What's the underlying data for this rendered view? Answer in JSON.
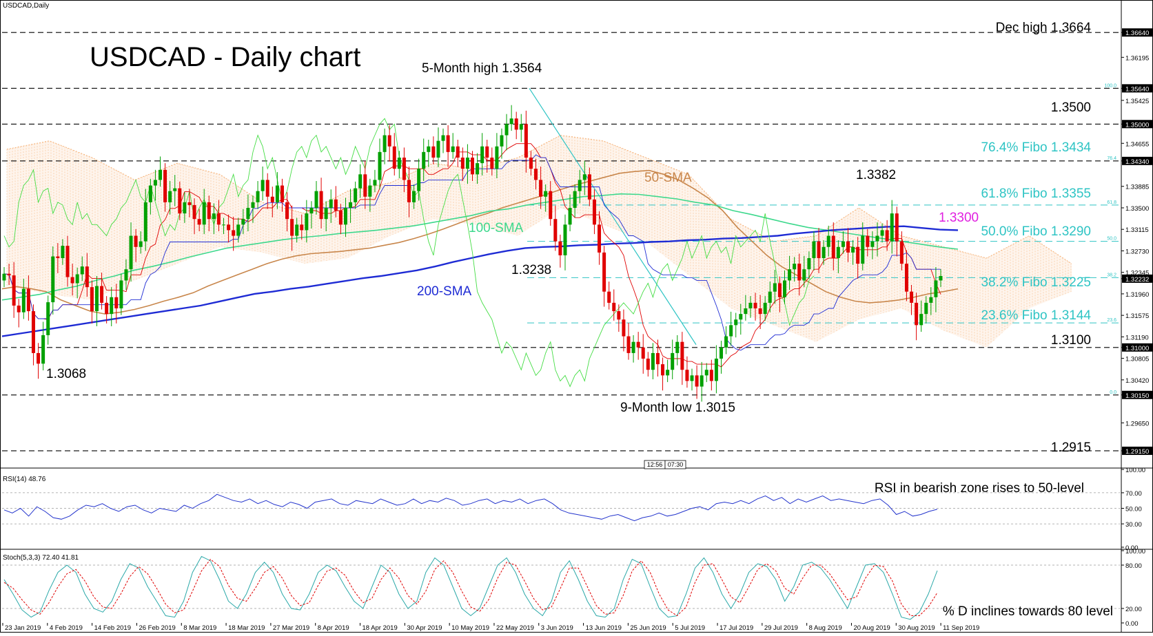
{
  "window": {
    "symbol_label": "USDCAD,Daily",
    "time_marker_left": "12:56",
    "time_marker_right": "07:30"
  },
  "colors": {
    "candle_up": "#00a000",
    "candle_down": "#e00000",
    "sma50": "#c8864b",
    "sma100": "#3cd88c",
    "sma200": "#1e2bd4",
    "tenkan": "#e00000",
    "kijun": "#1e2bd4",
    "chikou": "#44dd44",
    "cloud": "#f4a460",
    "fibo": "#2ec4c4",
    "trendline": "#2ec4c4",
    "rsi": "#2233cc",
    "stoch_k": "#2aa8a8",
    "stoch_d": "#e00000",
    "label_1_33": "#e020e0"
  },
  "chart_data": [
    {
      "type": "candlestick",
      "title": "USDCAD - Daily chart",
      "ylim": [
        1.2889,
        1.37
      ],
      "y_ticks": [
        "1.36640",
        "1.36195",
        "1.35640",
        "1.35425",
        "1.35000",
        "1.34655",
        "1.34340",
        "1.33885",
        "1.33500",
        "1.33115",
        "1.32730",
        "1.32345",
        "1.32232",
        "1.31960",
        "1.31575",
        "1.31190",
        "1.31000",
        "1.30805",
        "1.30420",
        "1.30150",
        "1.29650",
        "1.29150"
      ],
      "x_ticks": [
        "23 Jan 2019",
        "4 Feb 2019",
        "14 Feb 2019",
        "26 Feb 2019",
        "8 Mar 2019",
        "18 Mar 2019",
        "27 Mar 2019",
        "8 Apr 2019",
        "18 Apr 2019",
        "30 Apr 2019",
        "10 May 2019",
        "22 May 2019",
        "3 Jun 2019",
        "13 Jun 2019",
        "25 Jun 2019",
        "5 Jul 2019",
        "17 Jul 2019",
        "29 Jul 2019",
        "8 Aug 2019",
        "20 Aug 2019",
        "30 Aug 2019",
        "11 Sep 2019"
      ],
      "levels": [
        {
          "value": 1.3664,
          "label": "Dec high 1.3664",
          "style": "dashed-black"
        },
        {
          "value": 1.3564,
          "label": "5-Month high 1.3564",
          "style": "dashed-black"
        },
        {
          "value": 1.35,
          "label": "1.3500",
          "style": "dashed-black"
        },
        {
          "value": 1.3434,
          "label": "76.4% Fibo 1.3434",
          "style": "dashed-black"
        },
        {
          "value": 1.3355,
          "label": "61.8% Fibo 1.3355",
          "style": "dashed-fibo"
        },
        {
          "value": 1.329,
          "label": "50.0% Fibo 1.3290",
          "style": "dashed-fibo"
        },
        {
          "value": 1.3225,
          "label": "38.2% Fibo 1.3225",
          "style": "dashed-fibo"
        },
        {
          "value": 1.3144,
          "label": "23.6% Fibo 1.3144",
          "style": "dashed-fibo"
        },
        {
          "value": 1.31,
          "label": "1.3100",
          "style": "dashed-black"
        },
        {
          "value": 1.3015,
          "label": "9-Month low 1.3015",
          "style": "dashed-black"
        },
        {
          "value": 1.2915,
          "label": "1.2915",
          "style": "dashed-black"
        }
      ],
      "fibo_small_labels": [
        "100.0",
        "76.4",
        "61.8",
        "50.0",
        "38.2",
        "23.6",
        "0.0"
      ],
      "annotations": [
        {
          "text": "1.3068"
        },
        {
          "text": "1.3238"
        },
        {
          "text": "1.3382"
        },
        {
          "text": "1.3300"
        },
        {
          "text": "50-SMA"
        },
        {
          "text": "100-SMA"
        },
        {
          "text": "200-SMA"
        }
      ],
      "close_price": [
        1.3232,
        1.3229,
        1.3175,
        1.3163,
        1.3205,
        1.3165,
        1.309,
        1.3071,
        1.3122,
        1.3181,
        1.3263,
        1.326,
        1.3282,
        1.3226,
        1.3215,
        1.3231,
        1.3245,
        1.3208,
        1.3165,
        1.321,
        1.318,
        1.316,
        1.319,
        1.317,
        1.322,
        1.324,
        1.33,
        1.328,
        1.329,
        1.336,
        1.339,
        1.34,
        1.3418,
        1.336,
        1.338,
        1.3385,
        1.334,
        1.336,
        1.3355,
        1.333,
        1.332,
        1.336,
        1.333,
        1.334,
        1.332,
        1.332,
        1.331,
        1.33,
        1.332,
        1.333,
        1.335,
        1.336,
        1.338,
        1.34,
        1.337,
        1.336,
        1.339,
        1.336,
        1.333,
        1.33,
        1.332,
        1.331,
        1.334,
        1.335,
        1.338,
        1.333,
        1.335,
        1.3365,
        1.3345,
        1.332,
        1.335,
        1.336,
        1.3385,
        1.341,
        1.337,
        1.339,
        1.34,
        1.345,
        1.348,
        1.346,
        1.342,
        1.344,
        1.34,
        1.336,
        1.338,
        1.342,
        1.345,
        1.346,
        1.344,
        1.347,
        1.348,
        1.345,
        1.346,
        1.344,
        1.342,
        1.344,
        1.341,
        1.343,
        1.346,
        1.344,
        1.342,
        1.346,
        1.348,
        1.35,
        1.351,
        1.349,
        1.35,
        1.344,
        1.342,
        1.34,
        1.337,
        1.338,
        1.333,
        1.329,
        1.3265,
        1.332,
        1.335,
        1.338,
        1.34,
        1.341,
        1.3365,
        1.332,
        1.327,
        1.32,
        1.318,
        1.3165,
        1.315,
        1.312,
        1.309,
        1.311,
        1.31,
        1.308,
        1.306,
        1.309,
        1.307,
        1.305,
        1.306,
        1.309,
        1.311,
        1.306,
        1.304,
        1.305,
        1.303,
        1.305,
        1.306,
        1.304,
        1.308,
        1.31,
        1.312,
        1.314,
        1.315,
        1.316,
        1.317,
        1.318,
        1.317,
        1.316,
        1.318,
        1.32,
        1.3215,
        1.319,
        1.322,
        1.324,
        1.325,
        1.322,
        1.324,
        1.326,
        1.329,
        1.326,
        1.328,
        1.33,
        1.326,
        1.328,
        1.329,
        1.327,
        1.328,
        1.325,
        1.33,
        1.328,
        1.329,
        1.33,
        1.331,
        1.329,
        1.334,
        1.329,
        1.325,
        1.32,
        1.318,
        1.314,
        1.316,
        1.318,
        1.319,
        1.322,
        1.3228
      ],
      "series": [
        {
          "name": "50-SMA",
          "values": [
            1.3205,
            1.3209,
            1.3205,
            1.32,
            1.3185,
            1.3175,
            1.3165,
            1.316,
            1.3163,
            1.3168,
            1.3175,
            1.3183,
            1.319,
            1.3198,
            1.321,
            1.322,
            1.323,
            1.324,
            1.325,
            1.3258,
            1.3264,
            1.3268,
            1.327,
            1.3272,
            1.3275,
            1.3278,
            1.3283,
            1.3288,
            1.3295,
            1.3303,
            1.3312,
            1.3322,
            1.3332,
            1.334,
            1.335,
            1.3358,
            1.3366,
            1.3374,
            1.3383,
            1.3391,
            1.3398,
            1.3405,
            1.3412,
            1.3415,
            1.3417,
            1.341,
            1.34,
            1.3385,
            1.3368,
            1.3345,
            1.3315,
            1.329,
            1.3265,
            1.3245,
            1.323,
            1.3215,
            1.32,
            1.319,
            1.3183,
            1.318,
            1.3182,
            1.3185,
            1.319,
            1.3196,
            1.32,
            1.3205
          ]
        },
        {
          "name": "100-SMA",
          "values": [
            1.3185,
            1.319,
            1.3195,
            1.3203,
            1.321,
            1.322,
            1.3228,
            1.3238,
            1.3245,
            1.3253,
            1.3262,
            1.327,
            1.3278,
            1.3283,
            1.3288,
            1.3293,
            1.3297,
            1.33,
            1.3304,
            1.3307,
            1.331,
            1.3314,
            1.3318,
            1.3324,
            1.333,
            1.3336,
            1.3344,
            1.3348,
            1.3355,
            1.336,
            1.3365,
            1.337,
            1.3372,
            1.3375,
            1.3374,
            1.337,
            1.3366,
            1.336,
            1.3355,
            1.3345,
            1.3338,
            1.333,
            1.3322,
            1.3315,
            1.331,
            1.3305,
            1.33,
            1.3295,
            1.329,
            1.3285,
            1.328,
            1.3276
          ]
        },
        {
          "name": "200-SMA",
          "values": [
            1.312,
            1.3125,
            1.313,
            1.3135,
            1.314,
            1.3145,
            1.315,
            1.3155,
            1.316,
            1.3165,
            1.317,
            1.3175,
            1.3182,
            1.3189,
            1.3196,
            1.32,
            1.3205,
            1.3209,
            1.3214,
            1.3219,
            1.3224,
            1.3228,
            1.3233,
            1.3238,
            1.3245,
            1.3253,
            1.326,
            1.3267,
            1.3273,
            1.3278,
            1.328,
            1.3281,
            1.3283,
            1.3284,
            1.3286,
            1.3287,
            1.3289,
            1.329,
            1.3292,
            1.3293,
            1.3295,
            1.3296,
            1.3298,
            1.33,
            1.3304,
            1.3307,
            1.331,
            1.3312,
            1.3314,
            1.3316,
            1.3317,
            1.3314,
            1.3311,
            1.331
          ]
        }
      ]
    },
    {
      "type": "line",
      "title": "RSI(14) 48.76",
      "annotation": "RSI in bearish zone rises to 50-level",
      "ylim": [
        0,
        100
      ],
      "y_ticks": [
        "100.00",
        "70.00",
        "50.00",
        "30.00",
        "0.00"
      ],
      "series": [
        {
          "name": "RSI(14)",
          "values": [
            48,
            44,
            50,
            40,
            52,
            46,
            38,
            36,
            40,
            48,
            54,
            52,
            56,
            50,
            46,
            52,
            54,
            48,
            44,
            50,
            48,
            46,
            54,
            50,
            56,
            60,
            68,
            64,
            60,
            58,
            62,
            56,
            60,
            55,
            52,
            58,
            55,
            50,
            58,
            60,
            62,
            56,
            54,
            60,
            58,
            56,
            62,
            58,
            54,
            56,
            62,
            56,
            60,
            58,
            63,
            60,
            54,
            56,
            60,
            62,
            56,
            60,
            58,
            62,
            56,
            60,
            62,
            56,
            48,
            44,
            42,
            40,
            38,
            36,
            40,
            42,
            38,
            34,
            38,
            40,
            44,
            40,
            42,
            46,
            50,
            52,
            48,
            56,
            58,
            56,
            60,
            56,
            62,
            66,
            60,
            64,
            56,
            62,
            58,
            62,
            66,
            60,
            62,
            60,
            58,
            56,
            60,
            62,
            54,
            42,
            46,
            40,
            42,
            46,
            48.76
          ]
        }
      ]
    },
    {
      "type": "line",
      "title": "Stoch(5,3,3) 72.40 41.81",
      "annotation": "% D inclines towards 80 level",
      "ylim": [
        0,
        100
      ],
      "y_ticks": [
        "100.00",
        "80.00",
        "20.00",
        "0.00"
      ],
      "series": [
        {
          "name": "%K",
          "values": [
            60,
            40,
            18,
            8,
            15,
            45,
            70,
            80,
            70,
            40,
            20,
            15,
            30,
            60,
            82,
            76,
            50,
            30,
            10,
            8,
            30,
            70,
            92,
            86,
            60,
            30,
            20,
            40,
            70,
            84,
            70,
            40,
            20,
            18,
            40,
            70,
            80,
            72,
            50,
            30,
            20,
            50,
            80,
            70,
            40,
            20,
            30,
            70,
            90,
            80,
            50,
            20,
            10,
            20,
            50,
            80,
            90,
            70,
            40,
            20,
            10,
            30,
            70,
            86,
            60,
            30,
            10,
            8,
            20,
            60,
            88,
            82,
            50,
            20,
            8,
            10,
            40,
            76,
            90,
            70,
            40,
            20,
            40,
            70,
            82,
            78,
            60,
            30,
            50,
            80,
            84,
            76,
            60,
            40,
            20,
            50,
            80,
            82,
            70,
            40,
            8,
            5,
            15,
            40,
            72.4
          ]
        },
        {
          "name": "%D",
          "values": [
            56,
            48,
            32,
            18,
            12,
            28,
            50,
            68,
            74,
            58,
            36,
            22,
            20,
            40,
            64,
            78,
            68,
            48,
            26,
            14,
            18,
            44,
            72,
            88,
            78,
            52,
            34,
            30,
            48,
            70,
            78,
            62,
            38,
            24,
            28,
            52,
            72,
            76,
            66,
            44,
            28,
            34,
            60,
            76,
            62,
            38,
            26,
            44,
            74,
            86,
            70,
            44,
            22,
            16,
            32,
            62,
            84,
            80,
            58,
            34,
            18,
            22,
            48,
            76,
            76,
            50,
            24,
            12,
            14,
            38,
            72,
            86,
            70,
            40,
            18,
            10,
            22,
            56,
            80,
            82,
            60,
            36,
            28,
            50,
            74,
            82,
            72,
            48,
            40,
            62,
            80,
            80,
            68,
            50,
            32,
            36,
            62,
            80,
            78,
            58,
            26,
            10,
            10,
            22,
            41.81
          ]
        }
      ]
    }
  ]
}
